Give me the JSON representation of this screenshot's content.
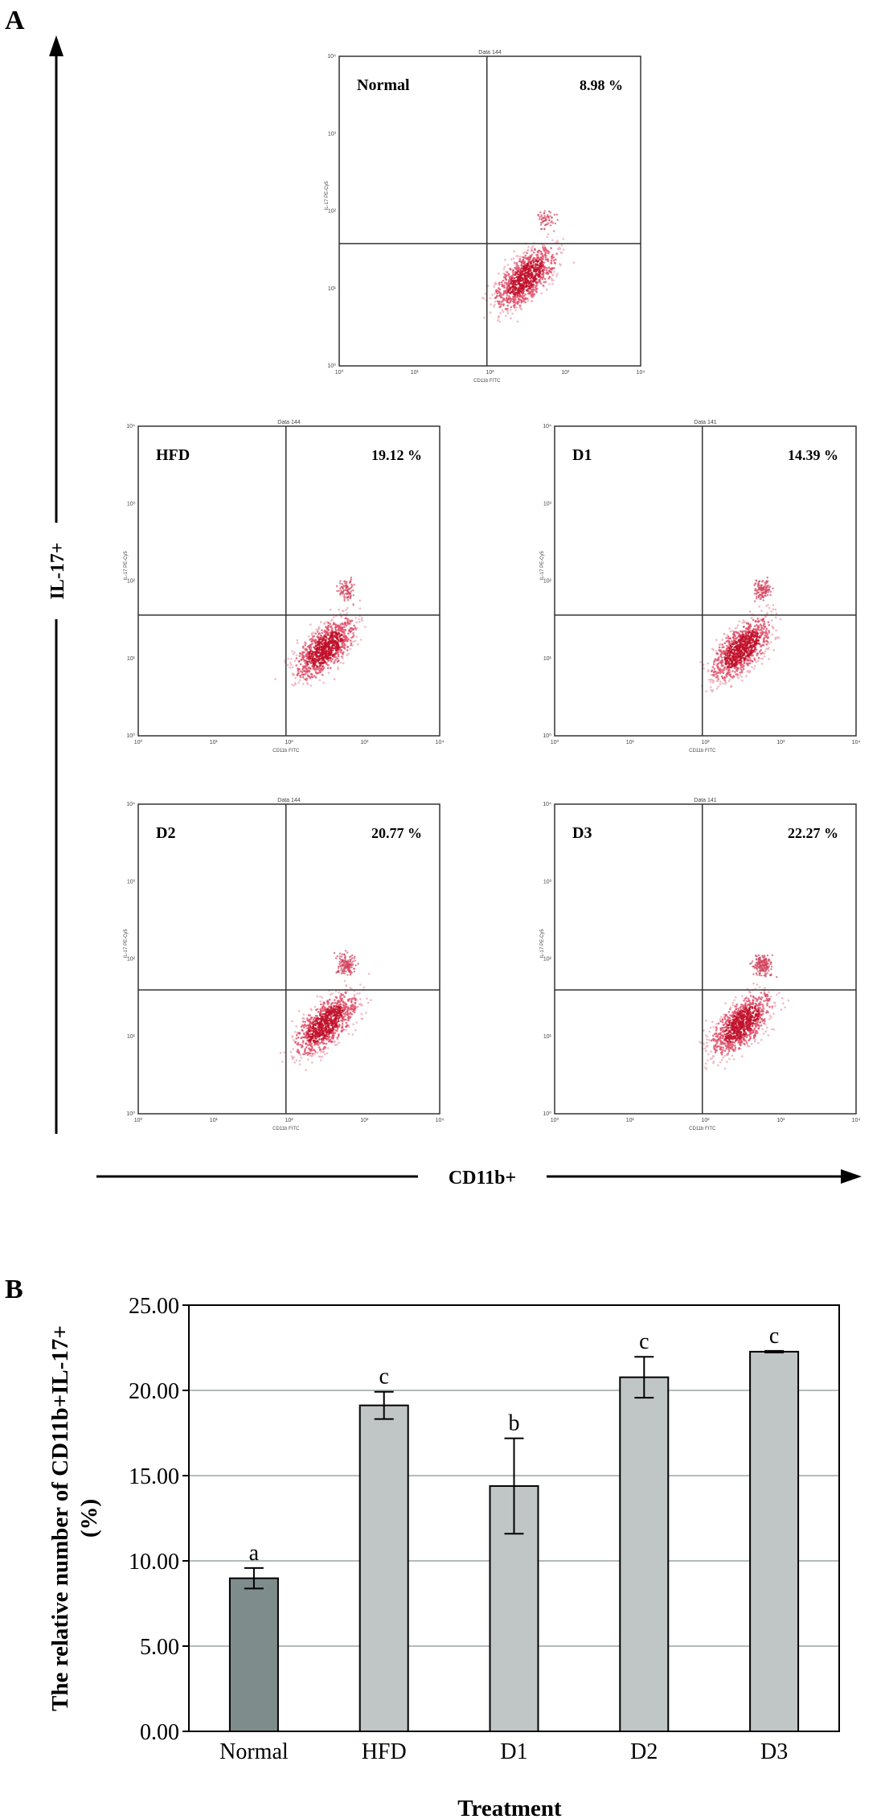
{
  "panel_labels": {
    "a": "A",
    "b": "B"
  },
  "flow_panel": {
    "y_axis_label": "IL-17+",
    "x_axis_label": "CD11b+",
    "quadrant_label_y": "IL-17 PE-Cy5",
    "quadrant_label_x": "CD11b FITC",
    "plots": [
      {
        "id": "normal",
        "name": "Normal",
        "percent": "8.98 %",
        "header": "Data 144"
      },
      {
        "id": "hfd",
        "name": "HFD",
        "percent": "19.12 %",
        "header": "Data 144"
      },
      {
        "id": "d1",
        "name": "D1",
        "percent": "14.39 %",
        "header": "Data 141"
      },
      {
        "id": "d2",
        "name": "D2",
        "percent": "20.77 %",
        "header": "Data 144"
      },
      {
        "id": "d3",
        "name": "D3",
        "percent": "22.27 %",
        "header": "Data 141"
      }
    ],
    "tick_labels": [
      "10⁰",
      "10¹",
      "10²",
      "10³",
      "10⁴"
    ]
  },
  "chart_data": {
    "type": "bar",
    "title": "",
    "xlabel": "Treatment",
    "ylabel_main": "The relative number of CD11b+IL-17+",
    "ylabel_unit": "(%)",
    "ylim": [
      0,
      25
    ],
    "yticks": [
      0,
      5,
      10,
      15,
      20,
      25
    ],
    "ytick_labels": [
      "0.00",
      "5.00",
      "10.00",
      "15.00",
      "20.00",
      "25.00"
    ],
    "grid": true,
    "categories": [
      "Normal",
      "HFD",
      "D1",
      "D2",
      "D3"
    ],
    "values": [
      8.98,
      19.12,
      14.39,
      20.77,
      22.27
    ],
    "errors": [
      0.6,
      0.8,
      2.8,
      1.2,
      0.05
    ],
    "significance": [
      "a",
      "c",
      "b",
      "c",
      "c"
    ],
    "bar_colors": [
      "#7f8c8c",
      "#c0c5c5",
      "#c0c5c5",
      "#c0c5c5",
      "#c0c5c5"
    ]
  }
}
